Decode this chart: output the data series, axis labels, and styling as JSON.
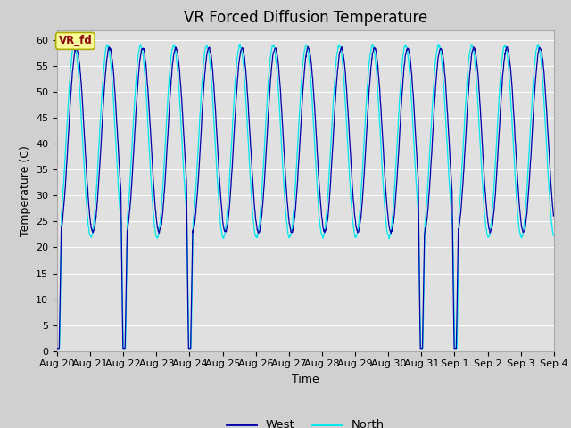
{
  "title": "VR Forced Diffusion Temperature",
  "xlabel": "Time",
  "ylabel": "Temperature (C)",
  "ylim": [
    0,
    62
  ],
  "yticks": [
    0,
    5,
    10,
    15,
    20,
    25,
    30,
    35,
    40,
    45,
    50,
    55,
    60
  ],
  "fig_bg_color": "#d0d0d0",
  "plot_bg_color": "#e0e0e0",
  "west_color": "#0000aa",
  "north_color": "#00e8f0",
  "legend_west": "West",
  "legend_north": "North",
  "annotation_text": "VR_fd",
  "annotation_color": "#8b0000",
  "annotation_bg": "#ffff99",
  "annotation_edge": "#aaaa00",
  "title_fontsize": 12,
  "axis_label_fontsize": 9,
  "tick_fontsize": 8
}
